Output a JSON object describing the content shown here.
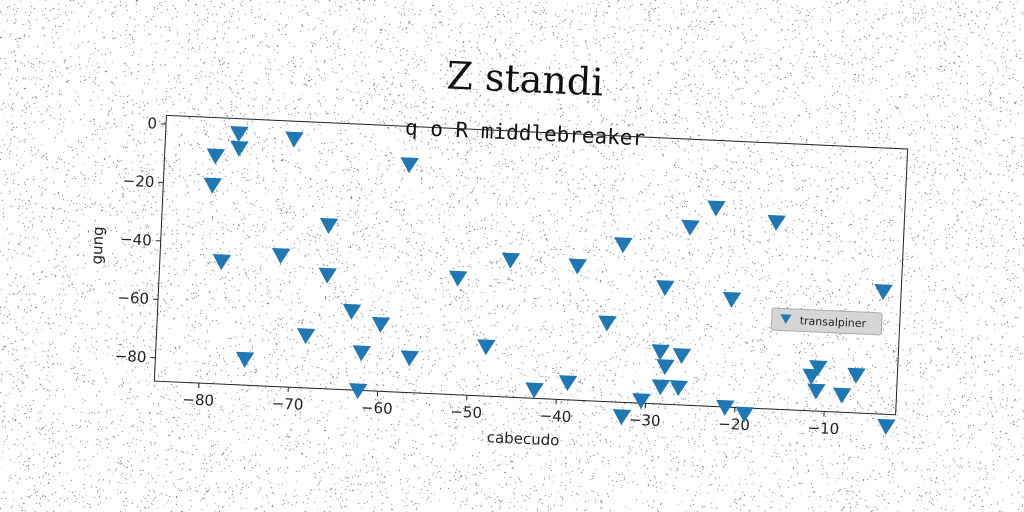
{
  "chart_data": {
    "type": "scatter",
    "title": "Z standi",
    "subtitle": "q o R middlebreaker",
    "xlabel": "cabecudo",
    "ylabel": "gung",
    "xlim": [
      -85,
      -2
    ],
    "ylim": [
      -88,
      3
    ],
    "xticks": [
      -80,
      -70,
      -60,
      -50,
      -40,
      -30,
      -20,
      -10
    ],
    "yticks": [
      0,
      -20,
      -40,
      -60,
      -80
    ],
    "grid": false,
    "legend_position": "center-right",
    "marker": "triangle-down",
    "marker_color": "#1f77b4",
    "series": [
      {
        "name": "transalpiner",
        "x": [
          -79.3,
          -79.5,
          -76.8,
          -76.7,
          -70.6,
          -57.6,
          -78.1,
          -71.5,
          -66.3,
          -66.2,
          -75.0,
          -68.3,
          -63.3,
          -60.0,
          -62.0,
          -62.2,
          -56.6,
          -51.6,
          -48.1,
          -45.8,
          -42.5,
          -38.3,
          -38.8,
          -33.3,
          -34.7,
          -32.6,
          -30.5,
          -28.6,
          -28.0,
          -28.4,
          -26.2,
          -26.4,
          -28.4,
          -25.9,
          -23.1,
          -20.9,
          -21.1,
          -18.9,
          -16.3,
          -10.9,
          -11.6,
          -11.0,
          -8.1,
          -6.6,
          -4.0,
          -3.0
        ],
        "y": [
          -10,
          -20,
          -2,
          -7,
          -3,
          -10,
          -46,
          -43,
          -32,
          -49,
          -79,
          -70,
          -61,
          -65,
          -75,
          -88,
          -76,
          -48,
          -71,
          -41,
          -85,
          -42,
          -82,
          -34,
          -61,
          -94,
          -87,
          -70,
          -75,
          -82,
          -71,
          -82,
          -48,
          -27,
          -20,
          -51,
          -88,
          -90,
          -24,
          -73,
          -76,
          -81,
          -82,
          -75,
          -46,
          -92
        ]
      }
    ]
  }
}
